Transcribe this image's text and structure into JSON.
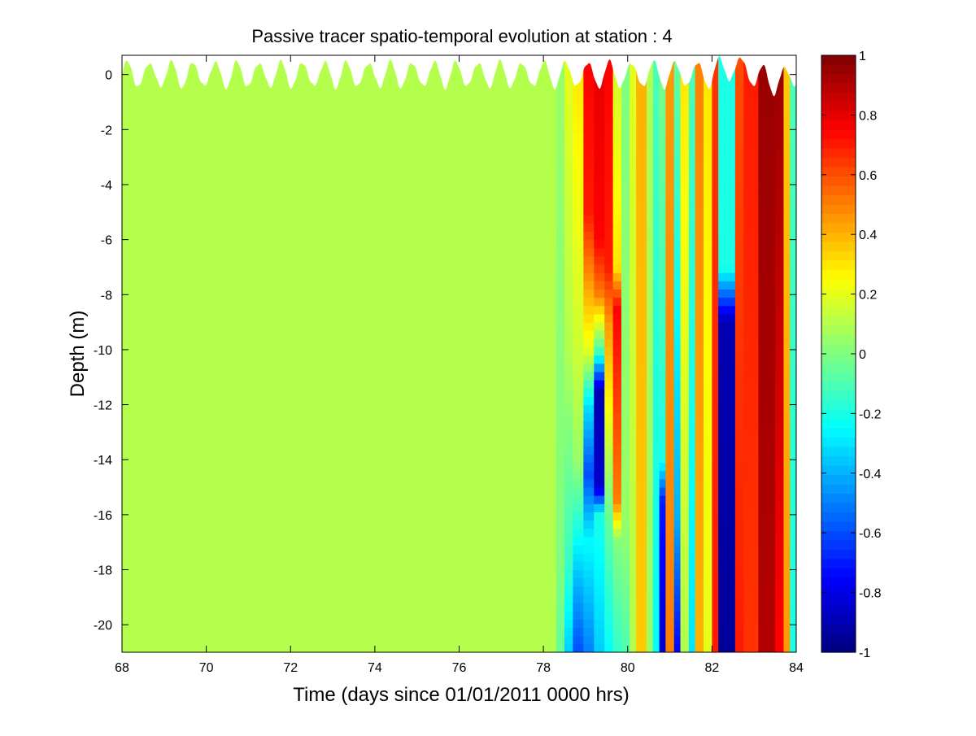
{
  "chart_data": {
    "type": "heatmap",
    "title": "Passive tracer spatio-temporal evolution at station : 4",
    "xlabel": "Time (days since 01/01/2011 0000 hrs)",
    "ylabel": "Depth (m)",
    "xlim": [
      68,
      84
    ],
    "ylim": [
      -21,
      0.7
    ],
    "xticks": [
      68,
      70,
      72,
      74,
      76,
      78,
      80,
      82,
      84
    ],
    "yticks": [
      0,
      -2,
      -4,
      -6,
      -8,
      -10,
      -12,
      -14,
      -16,
      -18,
      -20
    ],
    "colorbar": {
      "colormap": "jet",
      "range": [
        -1,
        1
      ],
      "ticks": [
        1,
        0.8,
        0.6,
        0.4,
        0.2,
        0,
        -0.2,
        -0.4,
        -0.6,
        -0.8,
        -1
      ]
    },
    "free_surface": {
      "mean_depth": 0.0,
      "tidal_amplitude": 0.45,
      "period_days": 0.52
    },
    "background_value": 0.1,
    "columns": [
      {
        "t0": 68.0,
        "t1": 78.3,
        "profile": [
          [
            -21,
            0.1
          ],
          [
            0.7,
            0.1
          ]
        ]
      },
      {
        "t0": 78.3,
        "t1": 78.5,
        "profile": [
          [
            -21,
            -0.05
          ],
          [
            -18,
            0.0
          ],
          [
            0.7,
            0.05
          ]
        ]
      },
      {
        "t0": 78.5,
        "t1": 78.7,
        "profile": [
          [
            -21,
            -0.35
          ],
          [
            -18,
            -0.15
          ],
          [
            -10,
            0.1
          ],
          [
            0.7,
            0.2
          ]
        ]
      },
      {
        "t0": 78.7,
        "t1": 78.95,
        "profile": [
          [
            -21,
            -0.6
          ],
          [
            -18,
            -0.35
          ],
          [
            -14,
            0.05
          ],
          [
            -10,
            0.15
          ],
          [
            0.7,
            0.3
          ]
        ]
      },
      {
        "t0": 78.95,
        "t1": 79.2,
        "profile": [
          [
            -21,
            -0.5
          ],
          [
            -17,
            -0.25
          ],
          [
            -14.5,
            -0.6
          ],
          [
            -12,
            -0.3
          ],
          [
            -10,
            0.2
          ],
          [
            -8,
            0.4
          ],
          [
            -5,
            0.7
          ],
          [
            0.7,
            0.75
          ]
        ]
      },
      {
        "t0": 79.2,
        "t1": 79.45,
        "profile": [
          [
            -21,
            -0.35
          ],
          [
            -16,
            -0.2
          ],
          [
            -15,
            -0.85
          ],
          [
            -11.5,
            -0.9
          ],
          [
            -10,
            -0.1
          ],
          [
            -8,
            0.5
          ],
          [
            -6,
            0.75
          ],
          [
            0.7,
            0.8
          ]
        ]
      },
      {
        "t0": 79.45,
        "t1": 79.65,
        "profile": [
          [
            -21,
            -0.25
          ],
          [
            -16,
            -0.05
          ],
          [
            -14,
            0.1
          ],
          [
            -12,
            0.25
          ],
          [
            -9,
            0.45
          ],
          [
            -7,
            0.7
          ],
          [
            0.7,
            0.75
          ]
        ]
      },
      {
        "t0": 79.65,
        "t1": 79.85,
        "profile": [
          [
            -21,
            -0.15
          ],
          [
            -17,
            0.0
          ],
          [
            -15.5,
            0.5
          ],
          [
            -8.5,
            0.75
          ],
          [
            -7,
            0.3
          ],
          [
            0.7,
            0.15
          ]
        ]
      },
      {
        "t0": 79.85,
        "t1": 80.05,
        "profile": [
          [
            -21,
            -0.1
          ],
          [
            -16,
            0.05
          ],
          [
            0.7,
            0.0
          ]
        ]
      },
      {
        "t0": 80.05,
        "t1": 80.2,
        "profile": [
          [
            -21,
            0.1
          ],
          [
            0.7,
            0.2
          ]
        ]
      },
      {
        "t0": 80.2,
        "t1": 80.45,
        "profile": [
          [
            -21,
            0.35
          ],
          [
            0.7,
            0.4
          ]
        ]
      },
      {
        "t0": 80.45,
        "t1": 80.6,
        "profile": [
          [
            -21,
            0.05
          ],
          [
            0.7,
            0.1
          ]
        ]
      },
      {
        "t0": 80.6,
        "t1": 80.75,
        "profile": [
          [
            -21,
            -0.25
          ],
          [
            0.7,
            -0.1
          ]
        ]
      },
      {
        "t0": 80.75,
        "t1": 80.9,
        "profile": [
          [
            -21,
            -0.85
          ],
          [
            -15.5,
            -0.7
          ],
          [
            -14,
            -0.2
          ],
          [
            0.7,
            0.0
          ]
        ]
      },
      {
        "t0": 80.9,
        "t1": 81.1,
        "profile": [
          [
            -21,
            0.5
          ],
          [
            0.7,
            0.45
          ]
        ]
      },
      {
        "t0": 81.1,
        "t1": 81.25,
        "profile": [
          [
            -21,
            -0.75
          ],
          [
            -16,
            -0.4
          ],
          [
            0.7,
            -0.05
          ]
        ]
      },
      {
        "t0": 81.25,
        "t1": 81.45,
        "profile": [
          [
            -21,
            0.1
          ],
          [
            0.7,
            0.3
          ]
        ]
      },
      {
        "t0": 81.45,
        "t1": 81.6,
        "profile": [
          [
            -21,
            -0.3
          ],
          [
            0.7,
            -0.1
          ]
        ]
      },
      {
        "t0": 81.6,
        "t1": 81.8,
        "profile": [
          [
            -21,
            0.4
          ],
          [
            0.7,
            0.5
          ]
        ]
      },
      {
        "t0": 81.8,
        "t1": 82.0,
        "profile": [
          [
            -21,
            0.2
          ],
          [
            0.7,
            0.3
          ]
        ]
      },
      {
        "t0": 82.0,
        "t1": 82.15,
        "profile": [
          [
            -21,
            0.7
          ],
          [
            0.7,
            0.65
          ]
        ]
      },
      {
        "t0": 82.15,
        "t1": 82.55,
        "profile": [
          [
            -21,
            -0.95
          ],
          [
            -9,
            -0.9
          ],
          [
            -7,
            -0.2
          ],
          [
            0.7,
            -0.2
          ]
        ]
      },
      {
        "t0": 82.55,
        "t1": 82.75,
        "profile": [
          [
            -21,
            0.7
          ],
          [
            0.7,
            0.6
          ]
        ]
      },
      {
        "t0": 82.75,
        "t1": 83.1,
        "profile": [
          [
            -21,
            0.65
          ],
          [
            0.7,
            0.7
          ]
        ]
      },
      {
        "t0": 83.1,
        "t1": 83.5,
        "profile": [
          [
            -21,
            0.9
          ],
          [
            0.7,
            0.95
          ]
        ]
      },
      {
        "t0": 83.5,
        "t1": 83.7,
        "profile": [
          [
            -21,
            0.75
          ],
          [
            0.7,
            0.95
          ]
        ]
      },
      {
        "t0": 83.7,
        "t1": 83.85,
        "profile": [
          [
            -21,
            0.45
          ],
          [
            0.7,
            0.35
          ]
        ]
      },
      {
        "t0": 83.85,
        "t1": 84.0,
        "profile": [
          [
            -21,
            -0.2
          ],
          [
            0.7,
            -0.1
          ]
        ]
      }
    ]
  }
}
